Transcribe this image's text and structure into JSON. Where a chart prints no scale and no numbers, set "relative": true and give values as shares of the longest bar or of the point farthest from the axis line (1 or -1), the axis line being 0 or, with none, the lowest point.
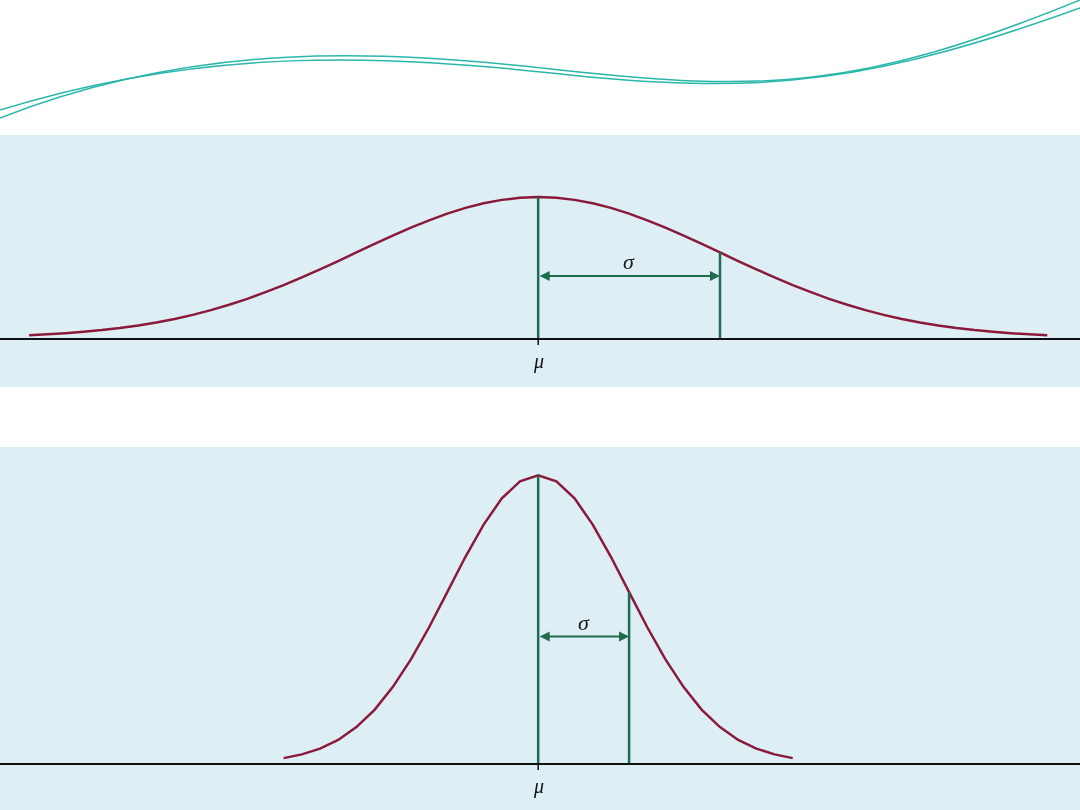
{
  "chart_data": [
    {
      "type": "line",
      "relative": true,
      "categories": [
        null,
        null,
        null,
        null,
        null,
        null,
        null,
        null,
        null,
        null,
        null,
        null,
        null,
        null,
        null,
        null,
        null,
        null,
        null,
        null,
        null,
        null,
        null,
        null,
        null,
        null,
        null,
        null,
        null,
        null,
        null,
        null,
        null,
        null,
        null,
        null,
        null,
        null,
        null,
        null,
        null,
        null,
        null,
        null,
        null,
        null,
        null,
        null,
        null,
        null,
        null,
        null,
        null,
        null,
        null,
        null,
        null,
        null,
        null
      ],
      "series": [
        {
          "color": "#8b1a3a",
          "values": [
            null,
            0.02,
            0.026,
            0.034,
            0.044,
            0.056,
            0.071,
            0.089,
            0.11,
            0.135,
            0.164,
            0.198,
            0.236,
            0.278,
            0.325,
            0.375,
            0.43,
            0.487,
            0.546,
            0.607,
            0.667,
            0.726,
            0.783,
            0.835,
            0.882,
            0.923,
            0.956,
            0.98,
            0.995,
            1,
            0.995,
            0.98,
            0.956,
            0.923,
            0.882,
            0.835,
            0.783,
            0.726,
            0.667,
            0.607,
            0.546,
            0.487,
            0.43,
            0.375,
            0.325,
            0.278,
            0.236,
            0.198,
            0.164,
            0.135,
            0.11,
            0.089,
            0.071,
            0.056,
            0.044,
            0.034,
            0.026,
            0.02,
            null
          ]
        }
      ],
      "annotations": [
        "μ",
        "σ"
      ]
    },
    {
      "type": "line",
      "relative": true,
      "categories": [
        null,
        null,
        null,
        null,
        null,
        null,
        null,
        null,
        null,
        null,
        null,
        null,
        null,
        null,
        null,
        null,
        null,
        null,
        null,
        null,
        null,
        null,
        null,
        null,
        null,
        null,
        null,
        null,
        null,
        null,
        null,
        null,
        null,
        null,
        null,
        null,
        null,
        null,
        null,
        null,
        null,
        null,
        null,
        null,
        null,
        null,
        null,
        null,
        null,
        null,
        null,
        null,
        null,
        null,
        null,
        null,
        null,
        null,
        null
      ],
      "series": [
        {
          "color": "#8b1a3a",
          "values": [
            null,
            null,
            null,
            null,
            null,
            null,
            null,
            null,
            null,
            null,
            null,
            null,
            null,
            null,
            null,
            0.017,
            0.03,
            0.05,
            0.08,
            0.125,
            0.185,
            0.264,
            0.36,
            0.472,
            0.594,
            0.717,
            0.829,
            0.92,
            0.979,
            1,
            0.979,
            0.92,
            0.829,
            0.717,
            0.594,
            0.472,
            0.36,
            0.264,
            0.185,
            0.125,
            0.08,
            0.05,
            0.03,
            0.017,
            null,
            null,
            null,
            null,
            null,
            null,
            null,
            null,
            null,
            null,
            null,
            null,
            null,
            null,
            null
          ]
        }
      ],
      "annotations": [
        "μ",
        "σ"
      ]
    }
  ]
}
